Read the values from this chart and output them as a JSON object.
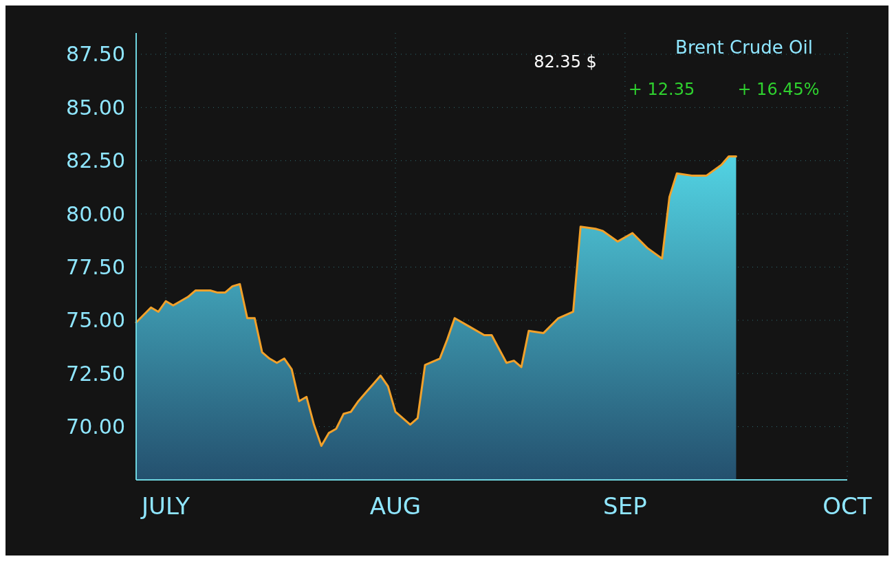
{
  "chart_data": {
    "type": "area",
    "title": "Brent Crude Oil",
    "annotations": [
      "82.35 $",
      "+ 12.35",
      "+ 16.45%"
    ],
    "series": [
      {
        "color": "#f2a12a",
        "x": [
          "--06-27",
          "--06-29",
          "--06-30",
          "--07-01",
          "--07-02",
          "--07-03",
          "--07-04",
          "--07-05",
          "--07-07",
          "--07-08",
          "--07-09",
          "--07-10",
          "--07-11",
          "--07-12",
          "--07-13",
          "--07-14",
          "--07-15",
          "--07-16",
          "--07-17",
          "--07-18",
          "--07-19",
          "--07-20",
          "--07-21",
          "--07-22",
          "--07-23",
          "--07-24",
          "--07-25",
          "--07-26",
          "--07-27",
          "--07-28",
          "--07-29",
          "--07-30",
          "--07-31",
          "--08-01",
          "--08-03",
          "--08-04",
          "--08-05",
          "--08-07",
          "--08-08",
          "--08-09",
          "--08-11",
          "--08-13",
          "--08-14",
          "--08-16",
          "--08-17",
          "--08-18",
          "--08-19",
          "--08-21",
          "--08-23",
          "--08-25",
          "--08-26",
          "--08-28",
          "--08-29",
          "--08-31",
          "--09-02",
          "--09-04",
          "--09-06",
          "--09-07",
          "--09-08",
          "--09-10",
          "--09-12",
          "--09-14",
          "--09-15",
          "--09-16"
        ],
        "values": [
          74.9,
          75.6,
          75.4,
          75.9,
          75.7,
          75.9,
          76.1,
          76.4,
          76.4,
          76.3,
          76.3,
          76.6,
          76.7,
          75.1,
          75.1,
          73.5,
          73.2,
          73.0,
          73.2,
          72.7,
          71.2,
          71.4,
          70.1,
          69.1,
          69.7,
          69.9,
          70.6,
          70.7,
          71.2,
          71.6,
          72.0,
          72.4,
          71.9,
          70.7,
          70.1,
          70.4,
          72.9,
          73.2,
          74.1,
          75.1,
          74.7,
          74.3,
          74.3,
          73.0,
          73.1,
          72.8,
          74.5,
          74.4,
          75.1,
          75.4,
          79.4,
          79.3,
          79.2,
          78.7,
          79.1,
          78.4,
          77.9,
          80.8,
          81.9,
          81.8,
          81.8,
          82.3,
          82.7,
          82.7
        ]
      }
    ],
    "xlim": [
      "--06-27",
      "--10-01"
    ],
    "xticks": [
      {
        "value": "--07-01",
        "label": "JULY"
      },
      {
        "value": "--08-01",
        "label": "AUG"
      },
      {
        "value": "--09-01",
        "label": "SEP"
      },
      {
        "value": "--10-01",
        "label": "OCT"
      }
    ],
    "ylim": [
      67.5,
      88.5
    ],
    "yticks": [
      {
        "value": 70,
        "label": "70.00"
      },
      {
        "value": 72.5,
        "label": "72.50"
      },
      {
        "value": 75,
        "label": "75.00"
      },
      {
        "value": 77.5,
        "label": "77.50"
      },
      {
        "value": 80,
        "label": "80.00"
      },
      {
        "value": 82.5,
        "label": "82.50"
      },
      {
        "value": 85,
        "label": "85.00"
      },
      {
        "value": 87.5,
        "label": "87.50"
      }
    ],
    "grid": true
  }
}
